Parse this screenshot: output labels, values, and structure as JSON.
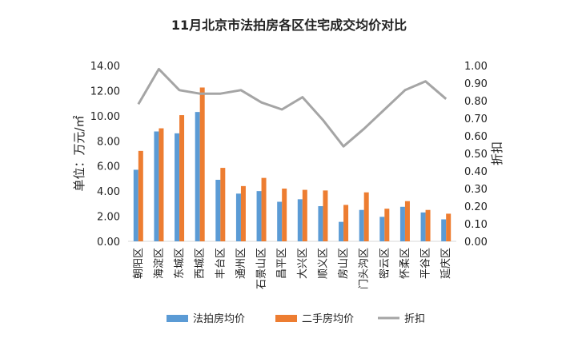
{
  "chart_data": {
    "type": "bar",
    "title": "11月北京市法拍房各区住宅成交均价对比",
    "ylabel": "单位：万元/㎡",
    "y2label": "折扣",
    "ylim": [
      0,
      14
    ],
    "y2lim": [
      0,
      1
    ],
    "yticks": [
      "0.00",
      "2.00",
      "4.00",
      "6.00",
      "8.00",
      "10.00",
      "12.00",
      "14.00"
    ],
    "y2ticks": [
      "0.00",
      "0.10",
      "0.20",
      "0.30",
      "0.40",
      "0.50",
      "0.60",
      "0.70",
      "0.80",
      "0.90",
      "1.00"
    ],
    "categories": [
      "朝阳区",
      "海淀区",
      "东城区",
      "西城区",
      "丰台区",
      "通州区",
      "石景山区",
      "昌平区",
      "大兴区",
      "顺义区",
      "房山区",
      "门头沟区",
      "密云区",
      "怀柔区",
      "平谷区",
      "延庆区"
    ],
    "series": [
      {
        "name": "法拍房均价",
        "type": "bar",
        "axis": "left",
        "color": "#5b9bd5",
        "values": [
          5.7,
          8.75,
          8.6,
          10.3,
          4.9,
          3.8,
          4.0,
          3.15,
          3.35,
          2.8,
          1.55,
          2.5,
          1.95,
          2.75,
          2.3,
          1.75
        ]
      },
      {
        "name": "二手房均价",
        "type": "bar",
        "axis": "left",
        "color": "#ed7d31",
        "values": [
          7.2,
          9.0,
          10.05,
          12.25,
          5.85,
          4.4,
          5.05,
          4.2,
          4.1,
          4.05,
          2.9,
          3.9,
          2.6,
          3.2,
          2.5,
          2.2
        ]
      },
      {
        "name": "折扣",
        "type": "line",
        "axis": "right",
        "color": "#a5a5a5",
        "values": [
          0.78,
          0.98,
          0.86,
          0.84,
          0.84,
          0.86,
          0.79,
          0.75,
          0.82,
          0.69,
          0.54,
          0.64,
          0.75,
          0.86,
          0.91,
          0.81
        ]
      }
    ],
    "legend_position": "bottom",
    "grid": false
  }
}
